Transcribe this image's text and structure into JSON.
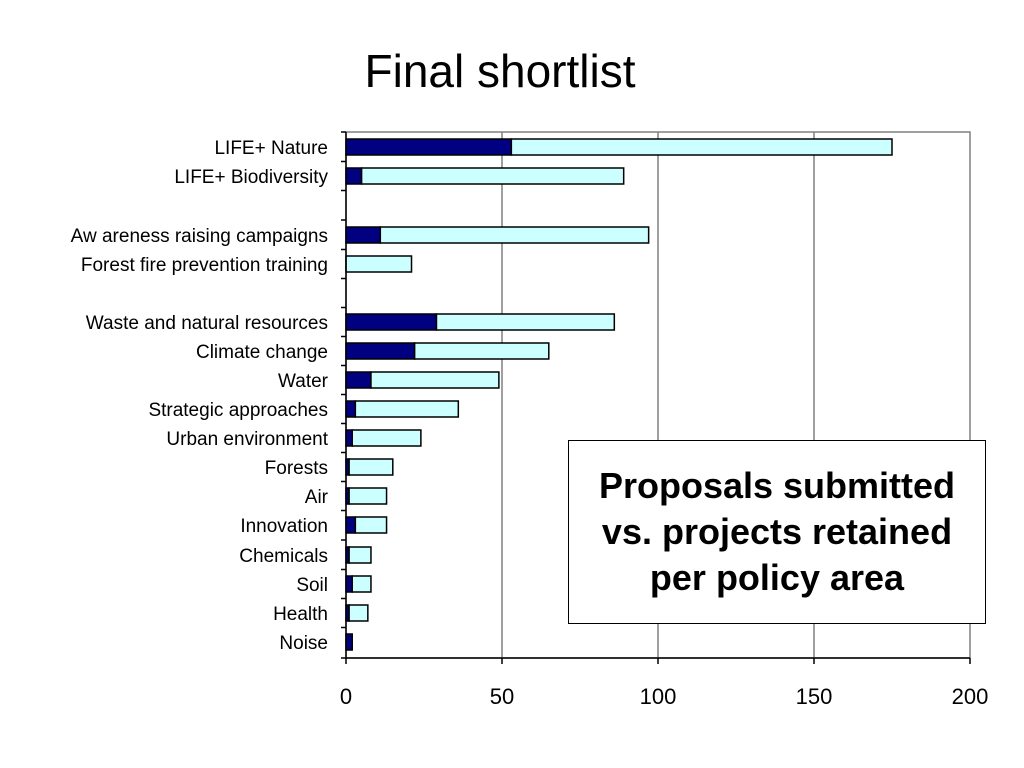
{
  "title": "Final shortlist",
  "annotation": "Proposals submitted vs. projects retained per policy area",
  "colors": {
    "retained": "#000080",
    "submitted": "#ccffff",
    "gridline": "#808080",
    "bar_border": "#000000"
  },
  "chart_data": {
    "type": "bar",
    "orientation": "horizontal",
    "stacked": true,
    "title": "Final shortlist",
    "xlabel": "",
    "ylabel": "",
    "xlim": [
      0,
      200
    ],
    "xticks": [
      0,
      50,
      100,
      150,
      200
    ],
    "grid": true,
    "legend": "none",
    "categories": [
      "LIFE+ Nature",
      "LIFE+ Biodiversity",
      "Aw areness raising campaigns",
      "Forest fire prevention training",
      "Waste and natural resources",
      "Climate change",
      "Water",
      "Strategic approaches",
      "Urban environment",
      "Forests",
      "Air",
      "Innovation",
      "Chemicals",
      "Soil",
      "Health",
      "Noise"
    ],
    "series": [
      {
        "color": "#000080",
        "values": [
          53,
          5,
          11,
          0,
          29,
          22,
          8,
          3,
          2,
          1,
          1,
          3,
          1,
          2,
          1,
          2
        ]
      },
      {
        "color": "#ccffff",
        "values": [
          122,
          84,
          86,
          21,
          57,
          43,
          41,
          33,
          22,
          14,
          12,
          10,
          7,
          6,
          6,
          0
        ]
      }
    ]
  }
}
